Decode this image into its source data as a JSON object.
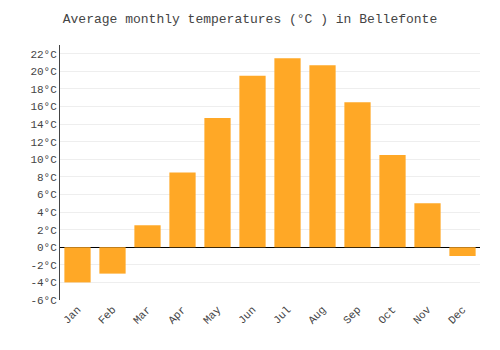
{
  "chart_data": {
    "type": "bar",
    "title": "Average monthly temperatures (°C ) in Bellefonte",
    "categories": [
      "Jan",
      "Feb",
      "Mar",
      "Apr",
      "May",
      "Jun",
      "Jul",
      "Aug",
      "Sep",
      "Oct",
      "Nov",
      "Dec"
    ],
    "values": [
      -4.0,
      -3.0,
      2.5,
      8.5,
      14.7,
      19.5,
      21.5,
      20.7,
      16.5,
      10.5,
      5.0,
      -1.0
    ],
    "color": "#FFA826",
    "ylim": [
      -6,
      23
    ],
    "yticks": [
      {
        "value": -6,
        "label": "-6°C"
      },
      {
        "value": -4,
        "label": "-4°C"
      },
      {
        "value": -2,
        "label": "-2°C"
      },
      {
        "value": 0,
        "label": "0°C"
      },
      {
        "value": 2,
        "label": "2°C"
      },
      {
        "value": 4,
        "label": "4°C"
      },
      {
        "value": 6,
        "label": "6°C"
      },
      {
        "value": 8,
        "label": "8°C"
      },
      {
        "value": 10,
        "label": "10°C"
      },
      {
        "value": 12,
        "label": "12°C"
      },
      {
        "value": 14,
        "label": "14°C"
      },
      {
        "value": 16,
        "label": "16°C"
      },
      {
        "value": 18,
        "label": "18°C"
      },
      {
        "value": 20,
        "label": "20°C"
      },
      {
        "value": 22,
        "label": "22°C"
      }
    ],
    "grid": true
  }
}
